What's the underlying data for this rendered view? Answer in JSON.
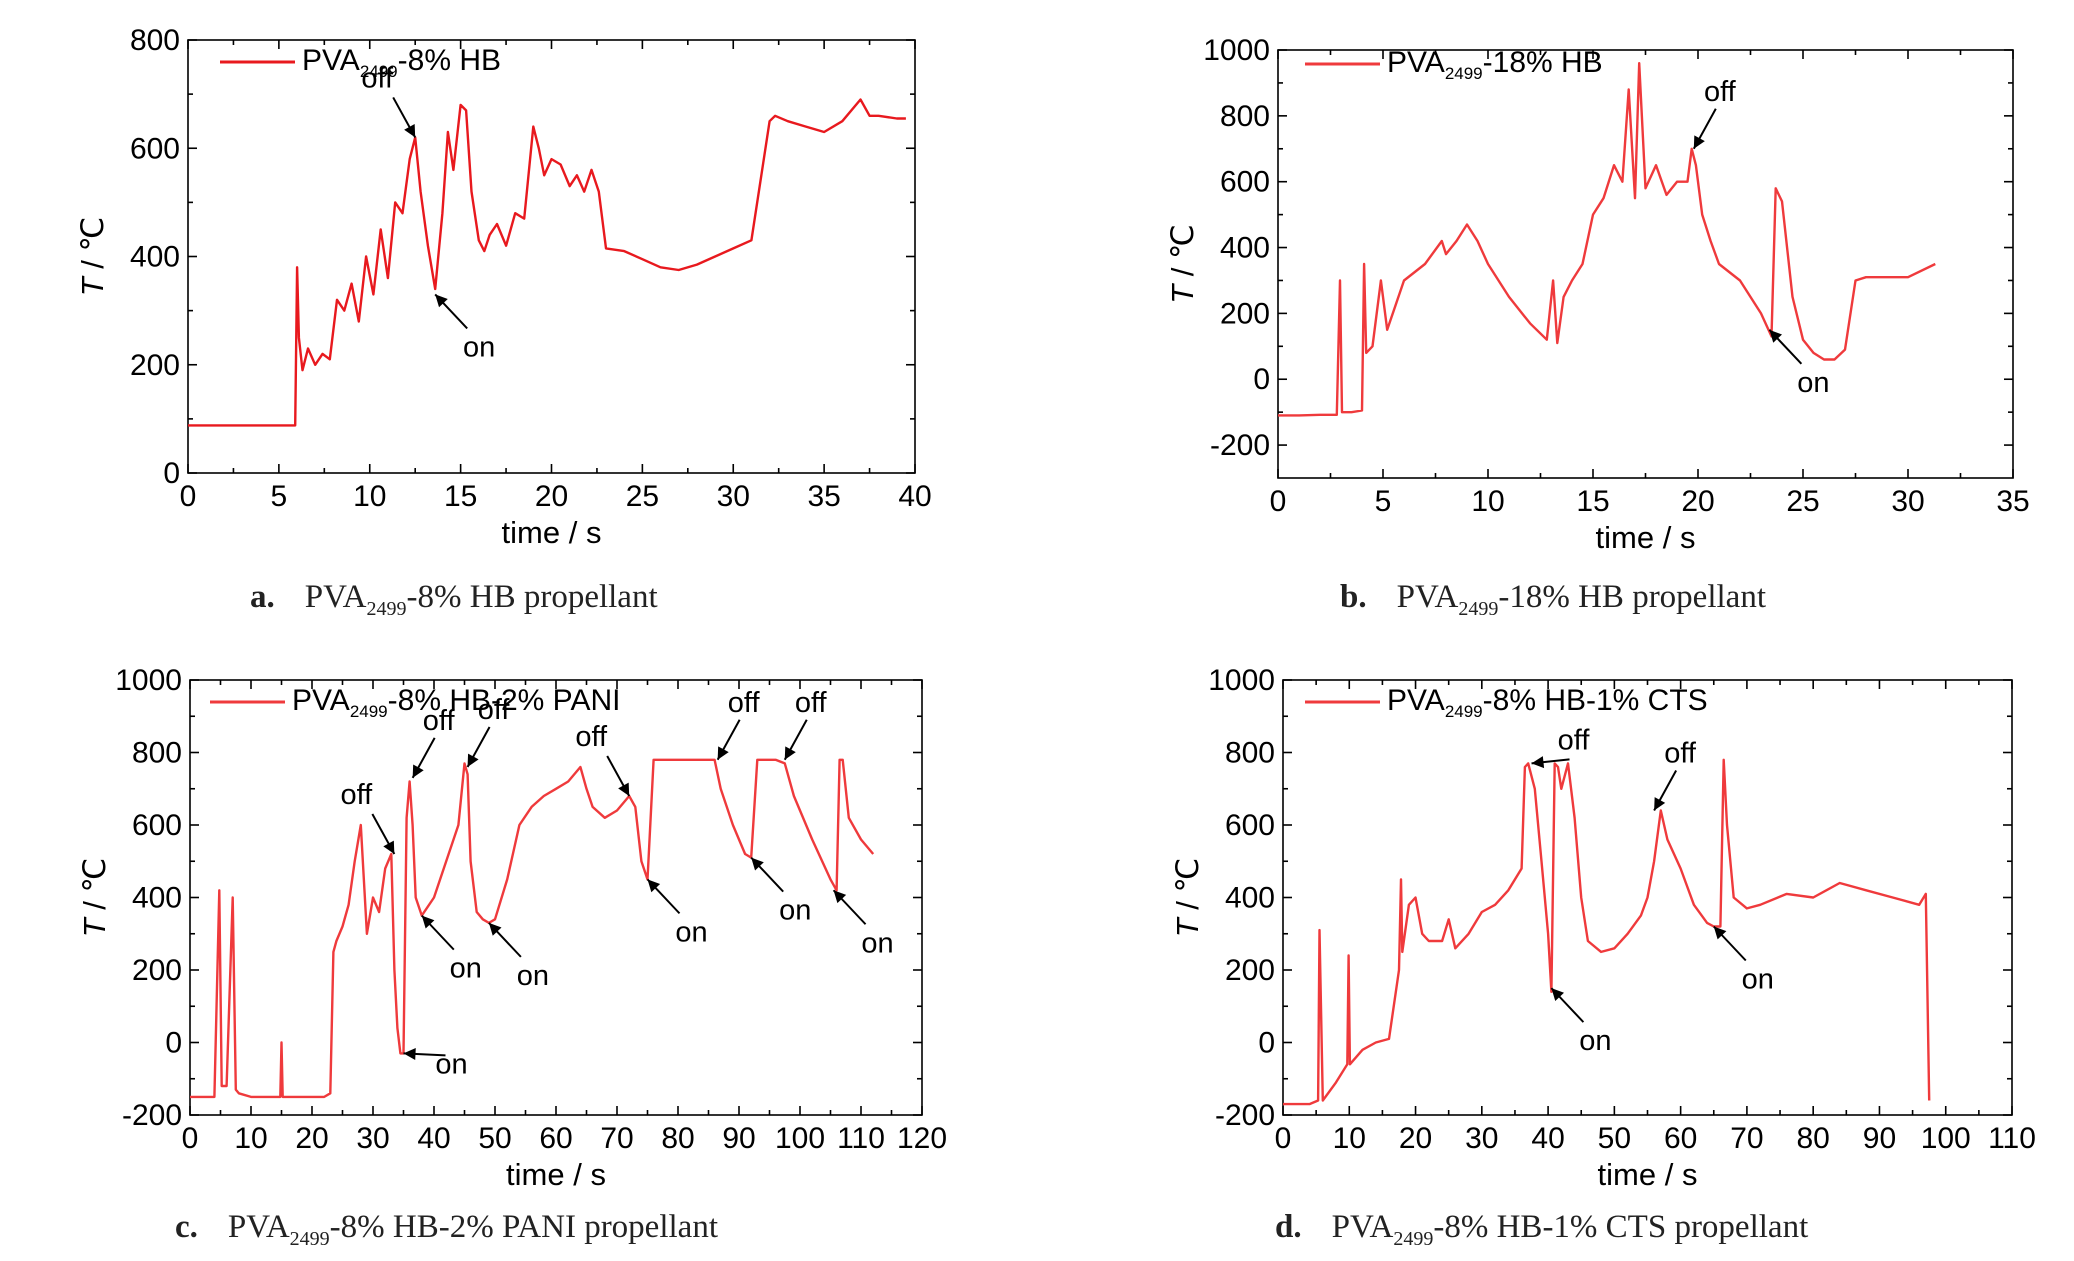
{
  "chart_data": [
    {
      "type": "line",
      "legend_prefix": "PVA",
      "legend_sub": "2499",
      "legend_suffix": "-8% HB",
      "xlabel": "time / s",
      "ylabel_italic": "T",
      "ylabel_rest": " / ℃",
      "xlim": [
        0,
        40
      ],
      "ylim": [
        0,
        800
      ],
      "xticks": [
        0,
        5,
        10,
        15,
        20,
        25,
        30,
        35,
        40
      ],
      "yticks": [
        0,
        200,
        400,
        600,
        800
      ],
      "color": "#e8191e",
      "caption": {
        "letter": "a.",
        "prefix": "PVA",
        "sub": "2499",
        "suffix": "-8% HB propellant"
      },
      "series": [
        {
          "name": "PVA2499-8% HB",
          "x": [
            0,
            2,
            4,
            5.9,
            6.0,
            6.1,
            6.3,
            6.6,
            7,
            7.4,
            7.8,
            8.2,
            8.6,
            9,
            9.4,
            9.8,
            10.2,
            10.6,
            11,
            11.4,
            11.8,
            12.2,
            12.5,
            12.8,
            13.2,
            13.6,
            14,
            14.3,
            14.6,
            15,
            15.3,
            15.6,
            16,
            16.3,
            16.6,
            17,
            17.5,
            18,
            18.5,
            19,
            19.3,
            19.6,
            20,
            20.5,
            21,
            21.4,
            21.8,
            22.2,
            22.6,
            23,
            24,
            25,
            26,
            27,
            28,
            29,
            30,
            31,
            32,
            32.3,
            33,
            34,
            35,
            36,
            37,
            37.5,
            38,
            39,
            39.5
          ],
          "y": [
            88,
            88,
            88,
            88,
            380,
            250,
            190,
            230,
            200,
            220,
            210,
            320,
            300,
            350,
            280,
            400,
            330,
            450,
            360,
            500,
            480,
            580,
            620,
            520,
            420,
            340,
            480,
            630,
            560,
            680,
            670,
            520,
            430,
            410,
            440,
            460,
            420,
            480,
            470,
            640,
            600,
            550,
            580,
            570,
            530,
            550,
            520,
            560,
            520,
            415,
            410,
            395,
            380,
            375,
            385,
            400,
            415,
            430,
            650,
            660,
            650,
            640,
            630,
            650,
            690,
            660,
            660,
            655,
            655
          ]
        }
      ],
      "annotations": [
        {
          "text": "off",
          "x": 12.5,
          "y": 620,
          "dir": "from-top-left"
        },
        {
          "text": "on",
          "x": 13.6,
          "y": 330,
          "dir": "from-bottom-right"
        }
      ]
    },
    {
      "type": "line",
      "legend_prefix": "PVA",
      "legend_sub": "2499",
      "legend_suffix": "-18% HB",
      "xlabel": "time / s",
      "ylabel_italic": "T",
      "ylabel_rest": " / ℃",
      "xlim": [
        0,
        35
      ],
      "ylim": [
        -300,
        1000
      ],
      "xticks": [
        0,
        5,
        10,
        15,
        20,
        25,
        30,
        35
      ],
      "yticks": [
        -200,
        0,
        200,
        400,
        600,
        800,
        1000
      ],
      "color": "#ef3a3c",
      "caption": {
        "letter": "b.",
        "prefix": "PVA",
        "sub": "2499",
        "suffix": "-18% HB propellant"
      },
      "series": [
        {
          "name": "PVA2499-18% HB",
          "x": [
            0,
            1,
            2,
            2.8,
            2.95,
            3.05,
            3.5,
            4,
            4.1,
            4.2,
            4.5,
            4.9,
            5.2,
            6,
            7,
            7.8,
            8,
            8.5,
            9,
            9.5,
            10,
            11,
            12,
            12.8,
            13.1,
            13.3,
            13.6,
            14,
            14.5,
            15,
            15.5,
            16,
            16.4,
            16.7,
            17,
            17.2,
            17.5,
            18,
            18.5,
            19,
            19.5,
            19.7,
            19.9,
            20.2,
            20.6,
            21,
            22,
            23,
            23.5,
            23.7,
            24,
            24.5,
            25,
            25.5,
            26,
            26.5,
            27,
            27.5,
            28,
            30,
            31.3
          ],
          "y": [
            -110,
            -110,
            -108,
            -108,
            300,
            -100,
            -100,
            -95,
            350,
            80,
            100,
            300,
            150,
            300,
            350,
            420,
            380,
            420,
            470,
            420,
            350,
            250,
            170,
            120,
            300,
            110,
            250,
            300,
            350,
            500,
            550,
            650,
            600,
            880,
            550,
            960,
            580,
            650,
            560,
            600,
            600,
            700,
            650,
            500,
            420,
            350,
            300,
            200,
            130,
            580,
            540,
            250,
            120,
            80,
            60,
            60,
            90,
            300,
            310,
            310,
            350
          ]
        }
      ],
      "annotations": [
        {
          "text": "off",
          "x": 19.8,
          "y": 700,
          "dir": "from-top-right"
        },
        {
          "text": "on",
          "x": 23.4,
          "y": 150,
          "dir": "from-bottom-right"
        }
      ]
    },
    {
      "type": "line",
      "legend_prefix": "PVA",
      "legend_sub": "2499",
      "legend_suffix": "-8% HB-2% PANI",
      "xlabel": "time / s",
      "ylabel_italic": "T",
      "ylabel_rest": " / ℃",
      "xlim": [
        0,
        120
      ],
      "ylim": [
        -200,
        1000
      ],
      "xticks": [
        0,
        10,
        20,
        30,
        40,
        50,
        60,
        70,
        80,
        90,
        100,
        110,
        120
      ],
      "yticks": [
        -200,
        0,
        200,
        400,
        600,
        800,
        1000
      ],
      "color": "#ef3a3c",
      "caption": {
        "letter": "c.",
        "prefix": "PVA",
        "sub": "2499",
        "suffix": "-8% HB-2% PANI propellant"
      },
      "series": [
        {
          "name": "PVA2499-8% HB-2% PANI",
          "x": [
            0,
            4,
            4.8,
            5.2,
            6,
            7,
            7.5,
            8,
            10,
            14.8,
            15,
            15.2,
            18,
            22,
            23,
            23.5,
            24,
            25,
            26,
            27,
            28,
            29,
            30,
            31,
            32,
            33,
            33.5,
            34,
            34.5,
            35,
            35.5,
            36,
            36.5,
            37,
            38,
            40,
            42,
            44,
            45,
            45.5,
            46,
            47,
            48,
            49,
            50,
            52,
            54,
            56,
            58,
            60,
            62,
            64,
            65,
            66,
            68,
            70,
            72,
            73,
            74,
            75,
            76,
            78,
            80,
            84,
            86,
            87,
            89,
            91,
            92,
            93,
            96,
            97.5,
            99,
            102,
            105,
            106,
            106.5,
            107,
            108,
            110,
            112
          ],
          "y": [
            -150,
            -150,
            420,
            -120,
            -120,
            400,
            -130,
            -140,
            -150,
            -150,
            0,
            -150,
            -150,
            -150,
            -140,
            250,
            280,
            320,
            380,
            500,
            600,
            300,
            400,
            360,
            480,
            520,
            200,
            40,
            -30,
            -30,
            620,
            720,
            600,
            400,
            350,
            400,
            500,
            600,
            770,
            740,
            500,
            360,
            340,
            330,
            340,
            450,
            600,
            650,
            680,
            700,
            720,
            760,
            700,
            650,
            620,
            640,
            680,
            650,
            500,
            450,
            780,
            780,
            780,
            780,
            780,
            700,
            600,
            520,
            510,
            780,
            780,
            770,
            680,
            560,
            450,
            420,
            780,
            780,
            620,
            560,
            520
          ]
        }
      ],
      "annotations": [
        {
          "text": "off",
          "x": 33.5,
          "y": 520,
          "dir": "from-top-left"
        },
        {
          "text": "on",
          "x": 35,
          "y": -30,
          "dir": "from-right"
        },
        {
          "text": "off",
          "x": 36.5,
          "y": 730,
          "dir": "from-top-right"
        },
        {
          "text": "on",
          "x": 38,
          "y": 350,
          "dir": "from-bottom-right"
        },
        {
          "text": "off",
          "x": 45.5,
          "y": 760,
          "dir": "from-top-right"
        },
        {
          "text": "on",
          "x": 49,
          "y": 330,
          "dir": "from-bottom-right"
        },
        {
          "text": "off",
          "x": 72,
          "y": 680,
          "dir": "from-top-left"
        },
        {
          "text": "on",
          "x": 75,
          "y": 450,
          "dir": "from-bottom-right"
        },
        {
          "text": "off",
          "x": 86.5,
          "y": 780,
          "dir": "from-top-right"
        },
        {
          "text": "on",
          "x": 92,
          "y": 510,
          "dir": "from-bottom-right"
        },
        {
          "text": "off",
          "x": 97.5,
          "y": 780,
          "dir": "from-top-right"
        },
        {
          "text": "on",
          "x": 105.5,
          "y": 420,
          "dir": "from-bottom-right"
        }
      ]
    },
    {
      "type": "line",
      "legend_prefix": "PVA",
      "legend_sub": "2499",
      "legend_suffix": "-8% HB-1% CTS",
      "xlabel": "time / s",
      "ylabel_italic": "T",
      "ylabel_rest": " / ℃",
      "xlim": [
        0,
        110
      ],
      "ylim": [
        -200,
        1000
      ],
      "xticks": [
        0,
        10,
        20,
        30,
        40,
        50,
        60,
        70,
        80,
        90,
        100,
        110
      ],
      "yticks": [
        -200,
        0,
        200,
        400,
        600,
        800,
        1000
      ],
      "color": "#ef3a3c",
      "caption": {
        "letter": "d.",
        "prefix": "PVA",
        "sub": "2499",
        "suffix": "-8% HB-1% CTS propellant"
      },
      "series": [
        {
          "name": "PVA2499-8% HB-1% CTS",
          "x": [
            0,
            4,
            5.3,
            5.5,
            6,
            8,
            9.7,
            9.9,
            10.1,
            12,
            14,
            16,
            17.5,
            17.8,
            18,
            19,
            20,
            21,
            22,
            24,
            25,
            26,
            28,
            30,
            32,
            34,
            36,
            36.5,
            37,
            38,
            39,
            40,
            40.5,
            41,
            41.5,
            42,
            43,
            44,
            45,
            46,
            48,
            50,
            52,
            54,
            55,
            56,
            57,
            58,
            60,
            62,
            64,
            65,
            66,
            66.5,
            67,
            68,
            70,
            72,
            76,
            80,
            84,
            88,
            92,
            96,
            97,
            97.5
          ],
          "y": [
            -170,
            -170,
            -160,
            310,
            -160,
            -110,
            -60,
            240,
            -60,
            -20,
            0,
            10,
            200,
            450,
            250,
            380,
            400,
            300,
            280,
            280,
            340,
            260,
            300,
            360,
            380,
            420,
            480,
            760,
            770,
            700,
            500,
            300,
            140,
            770,
            760,
            700,
            770,
            620,
            400,
            280,
            250,
            260,
            300,
            350,
            400,
            500,
            640,
            560,
            480,
            380,
            330,
            320,
            320,
            780,
            600,
            400,
            370,
            380,
            410,
            400,
            440,
            420,
            400,
            380,
            410,
            -160
          ]
        }
      ],
      "annotations": [
        {
          "text": "off",
          "x": 37.5,
          "y": 770,
          "dir": "from-right-low"
        },
        {
          "text": "on",
          "x": 40.5,
          "y": 150,
          "dir": "from-bottom-right"
        },
        {
          "text": "off",
          "x": 56,
          "y": 640,
          "dir": "from-top-right"
        },
        {
          "text": "on",
          "x": 65,
          "y": 320,
          "dir": "from-bottom-right"
        }
      ]
    }
  ]
}
